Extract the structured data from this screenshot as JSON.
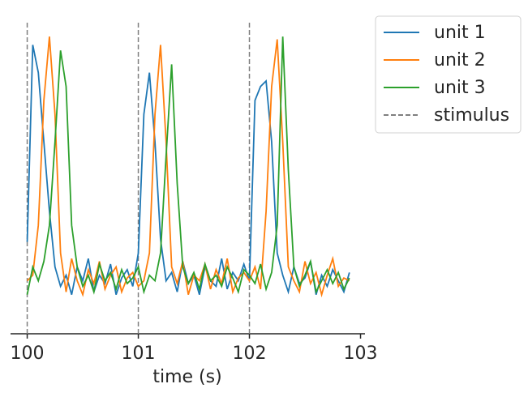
{
  "chart_data": {
    "type": "line",
    "xlabel": "time (s)",
    "xlim": [
      99.85,
      103.04
    ],
    "xticks": [
      100,
      101,
      102,
      103
    ],
    "ylim": [
      -0.05,
      1.03
    ],
    "legend": "outside upper right",
    "x": [
      100.0,
      100.05,
      100.1,
      100.15,
      100.2,
      100.25,
      100.3,
      100.35,
      100.4,
      100.45,
      100.5,
      100.55,
      100.6,
      100.65,
      100.7,
      100.75,
      100.8,
      100.85,
      100.9,
      100.95,
      101.0,
      101.05,
      101.1,
      101.15,
      101.2,
      101.25,
      101.3,
      101.35,
      101.4,
      101.45,
      101.5,
      101.55,
      101.6,
      101.65,
      101.7,
      101.75,
      101.8,
      101.85,
      101.9,
      101.95,
      102.0,
      102.05,
      102.1,
      102.15,
      102.2,
      102.25,
      102.3,
      102.35,
      102.4,
      102.45,
      102.5,
      102.55,
      102.6,
      102.65,
      102.7,
      102.75,
      102.8,
      102.85,
      102.9
    ],
    "series": [
      {
        "name": "unit 1",
        "color": "#1f77b4",
        "values": [
          0.24,
          0.95,
          0.85,
          0.6,
          0.35,
          0.15,
          0.08,
          0.12,
          0.05,
          0.15,
          0.1,
          0.18,
          0.06,
          0.12,
          0.09,
          0.16,
          0.05,
          0.11,
          0.14,
          0.08,
          0.2,
          0.7,
          0.85,
          0.6,
          0.25,
          0.1,
          0.13,
          0.06,
          0.17,
          0.09,
          0.12,
          0.05,
          0.15,
          0.1,
          0.08,
          0.18,
          0.07,
          0.13,
          0.1,
          0.16,
          0.1,
          0.75,
          0.8,
          0.82,
          0.6,
          0.2,
          0.12,
          0.06,
          0.15,
          0.09,
          0.11,
          0.17,
          0.05,
          0.12,
          0.08,
          0.14,
          0.1,
          0.06,
          0.13
        ]
      },
      {
        "name": "unit 2",
        "color": "#ff7f0e",
        "values": [
          0.1,
          0.12,
          0.3,
          0.75,
          0.98,
          0.7,
          0.2,
          0.06,
          0.18,
          0.1,
          0.05,
          0.14,
          0.09,
          0.17,
          0.07,
          0.12,
          0.15,
          0.06,
          0.11,
          0.13,
          0.08,
          0.1,
          0.2,
          0.7,
          0.95,
          0.6,
          0.15,
          0.09,
          0.17,
          0.05,
          0.12,
          0.1,
          0.16,
          0.07,
          0.14,
          0.09,
          0.18,
          0.06,
          0.11,
          0.13,
          0.1,
          0.15,
          0.07,
          0.35,
          0.8,
          0.97,
          0.6,
          0.15,
          0.1,
          0.06,
          0.17,
          0.09,
          0.13,
          0.05,
          0.12,
          0.18,
          0.08,
          0.11,
          0.1
        ]
      },
      {
        "name": "unit 3",
        "color": "#2ca02c",
        "values": [
          0.05,
          0.15,
          0.1,
          0.17,
          0.3,
          0.6,
          0.93,
          0.8,
          0.3,
          0.15,
          0.08,
          0.12,
          0.06,
          0.16,
          0.1,
          0.13,
          0.07,
          0.14,
          0.09,
          0.11,
          0.15,
          0.06,
          0.12,
          0.1,
          0.2,
          0.55,
          0.88,
          0.45,
          0.15,
          0.09,
          0.13,
          0.07,
          0.16,
          0.1,
          0.12,
          0.08,
          0.15,
          0.11,
          0.06,
          0.14,
          0.12,
          0.09,
          0.16,
          0.07,
          0.13,
          0.3,
          0.98,
          0.5,
          0.15,
          0.08,
          0.12,
          0.17,
          0.06,
          0.1,
          0.14,
          0.09,
          0.13,
          0.07,
          0.11
        ]
      }
    ],
    "stimulus": {
      "name": "stimulus",
      "color": "#7f7f7f",
      "x": [
        100,
        101,
        102
      ]
    }
  }
}
